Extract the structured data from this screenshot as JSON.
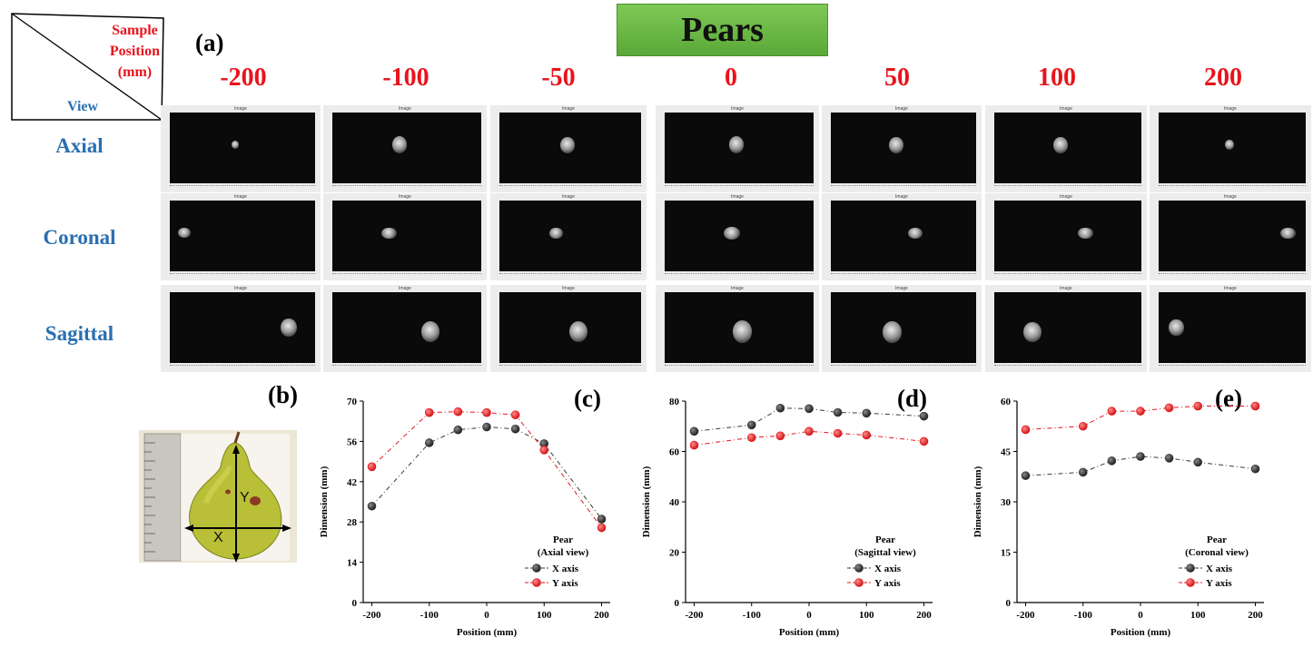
{
  "figure": {
    "title": "Pears",
    "panel_a_label": "(a)",
    "corner": {
      "sample_lines": [
        "Sample",
        "Position",
        "(mm)"
      ],
      "view_label": "View"
    },
    "positions": [
      "-200",
      "-100",
      "-50",
      "0",
      "50",
      "100",
      "200"
    ],
    "views": [
      "Axial",
      "Coronal",
      "Sagittal"
    ],
    "thumbnail_caption": "Image"
  },
  "photo": {
    "panel_label": "(b)",
    "axis_x_label": "X",
    "axis_y_label": "Y"
  },
  "colors": {
    "title_bg": "#6ab94a",
    "position_text": "#e8141c",
    "view_text": "#2a6fb0",
    "x_series": "#3a3a3a",
    "y_series": "#e8141c"
  },
  "chart_data": [
    {
      "panel_label": "(c)",
      "type": "line",
      "x": [
        -200,
        -100,
        -50,
        0,
        50,
        100,
        200
      ],
      "xticks": [
        -200,
        -100,
        0,
        100,
        200
      ],
      "xlim": [
        -215,
        215
      ],
      "yticks": [
        0,
        14,
        28,
        42,
        56,
        70
      ],
      "ylim": [
        0,
        70
      ],
      "xlabel": "Position (mm)",
      "ylabel": "Dimension (mm)",
      "legend_title": [
        "Pear",
        "(Axial view)"
      ],
      "legend_position": "bottom-right",
      "series": [
        {
          "name": "X axis",
          "values": [
            33.5,
            55.5,
            60,
            61,
            60.3,
            55.2,
            29
          ]
        },
        {
          "name": "Y axis",
          "values": [
            47.2,
            66,
            66.3,
            66,
            65.2,
            53,
            26
          ]
        }
      ]
    },
    {
      "panel_label": "(d)",
      "type": "line",
      "x": [
        -200,
        -100,
        -50,
        0,
        50,
        100,
        200
      ],
      "xticks": [
        -200,
        -100,
        0,
        100,
        200
      ],
      "xlim": [
        -215,
        215
      ],
      "yticks": [
        0,
        20,
        40,
        60,
        80
      ],
      "ylim": [
        0,
        80
      ],
      "xlabel": "Position (mm)",
      "ylabel": "Dimension (mm)",
      "legend_title": [
        "Pear",
        "(Sagittal view)"
      ],
      "legend_position": "bottom-right",
      "series": [
        {
          "name": "X axis",
          "values": [
            68,
            70.5,
            77.2,
            77,
            75.5,
            75.2,
            74
          ]
        },
        {
          "name": "Y axis",
          "values": [
            62.5,
            65.5,
            66.2,
            68,
            67.2,
            66.5,
            64
          ]
        }
      ]
    },
    {
      "panel_label": "(e)",
      "type": "line",
      "x": [
        -200,
        -100,
        -50,
        0,
        50,
        100,
        200
      ],
      "xticks": [
        -200,
        -100,
        0,
        100,
        200
      ],
      "xlim": [
        -215,
        215
      ],
      "yticks": [
        0,
        15,
        30,
        45,
        60
      ],
      "ylim": [
        0,
        60
      ],
      "xlabel": "Position (mm)",
      "ylabel": "Dimension (mm)",
      "legend_title": [
        "Pear",
        "(Coronal view)"
      ],
      "legend_position": "bottom-right",
      "series": [
        {
          "name": "X axis",
          "values": [
            37.8,
            38.8,
            42.2,
            43.5,
            43,
            41.8,
            39.8
          ]
        },
        {
          "name": "Y axis",
          "values": [
            51.5,
            52.5,
            57,
            57,
            58,
            58.5,
            58.5
          ]
        }
      ]
    }
  ]
}
